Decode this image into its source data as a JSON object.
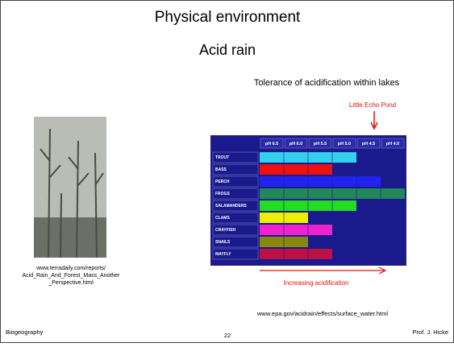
{
  "title": "Physical environment",
  "subtitle": "Acid rain",
  "photo": {
    "caption": [
      "www.terradaily.com/reports/",
      "Acid_Rain_And_Forest_Mass_Another",
      "_Perspective.html"
    ]
  },
  "figure": {
    "title": "Tolerance of acidification within lakes",
    "annotation": "Little Echo Pond",
    "arrow_label": "Increasing acidification",
    "source": "www.epa.gov/acidrain/effects/surface_water.html",
    "columns": [
      "pH 6.5",
      "pH 6.0",
      "pH 5.5",
      "pH 5.0",
      "pH 4.5",
      "pH 4.0"
    ],
    "rows": [
      {
        "label": "TROUT",
        "color": "#33d0ee",
        "span": 4
      },
      {
        "label": "BASS",
        "color": "#ee1111",
        "span": 3
      },
      {
        "label": "PERCH",
        "color": "#2222ee",
        "span": 5
      },
      {
        "label": "FROGS",
        "color": "#22885a",
        "span": 6
      },
      {
        "label": "SALAMANDERS",
        "color": "#22dd22",
        "span": 4
      },
      {
        "label": "CLAMS",
        "color": "#eeee00",
        "span": 2
      },
      {
        "label": "CRAYFISH",
        "color": "#ee22cc",
        "span": 3
      },
      {
        "label": "SNAILS",
        "color": "#888811",
        "span": 2
      },
      {
        "label": "MAYFLY",
        "color": "#bb1144",
        "span": 3
      }
    ]
  },
  "footer": {
    "left": "Biogeography",
    "page": "22",
    "right": "Prof. J. Hicke"
  }
}
